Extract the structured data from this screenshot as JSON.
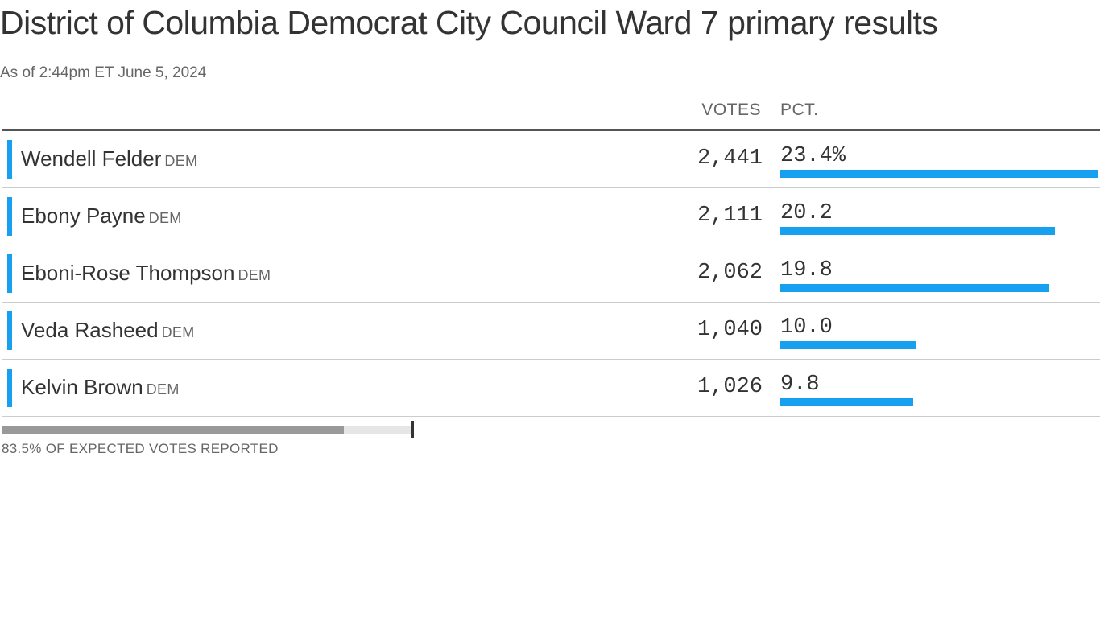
{
  "title": "District of Columbia Democrat City Council Ward 7 primary results",
  "subtitle": "As of 2:44pm ET June 5, 2024",
  "columns": {
    "votes": "VOTES",
    "pct": "PCT."
  },
  "candidates": [
    {
      "name": "Wendell Felder",
      "party": "DEM",
      "votes": "2,441",
      "pct_label": "23.4%",
      "pct": 23.4
    },
    {
      "name": "Ebony Payne",
      "party": "DEM",
      "votes": "2,111",
      "pct_label": "20.2",
      "pct": 20.2
    },
    {
      "name": "Eboni-Rose Thompson",
      "party": "DEM",
      "votes": "2,062",
      "pct_label": "19.8",
      "pct": 19.8
    },
    {
      "name": "Veda Rasheed",
      "party": "DEM",
      "votes": "1,040",
      "pct_label": "10.0",
      "pct": 10.0
    },
    {
      "name": "Kelvin Brown",
      "party": "DEM",
      "votes": "1,026",
      "pct_label": "9.8",
      "pct": 9.8
    }
  ],
  "reporting": {
    "label": "83.5% OF EXPECTED VOTES REPORTED",
    "fraction": 0.835
  },
  "colors": {
    "candidate_bar": "#18a0f0",
    "reporting_fill": "#999999",
    "reporting_track": "#e6e6e6"
  }
}
